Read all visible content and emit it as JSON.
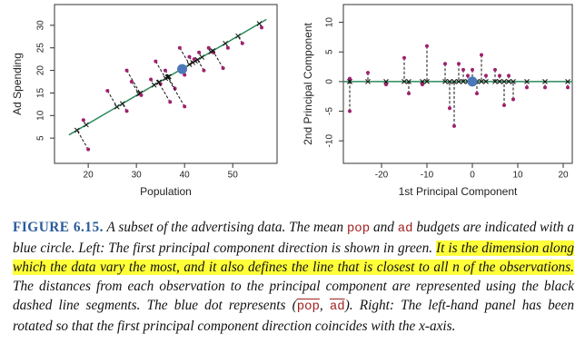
{
  "chart_data": [
    {
      "type": "scatter",
      "xlabel": "Population",
      "ylabel": "Ad Spending",
      "x": [
        19,
        20,
        24,
        28,
        28,
        29,
        31,
        33,
        34,
        35,
        36,
        37,
        38,
        39,
        40,
        40,
        41,
        42,
        43,
        44,
        45,
        46,
        48,
        49,
        52,
        56
      ],
      "values": [
        9,
        2.5,
        15.5,
        11,
        20,
        17.5,
        14.5,
        18,
        22,
        17,
        20,
        13,
        16,
        25,
        12,
        19,
        23,
        22.5,
        24,
        20,
        25,
        24,
        20.5,
        25,
        26,
        29.5
      ],
      "color": "#a0206e",
      "mean": {
        "x": 39.5,
        "y": 20.3,
        "color": "#4a78b8"
      },
      "line": {
        "x": [
          16,
          57
        ],
        "y": [
          5.7,
          31.3
        ],
        "color": "#2a8a5a"
      },
      "xlim": [
        13,
        59.2
      ],
      "ylim": [
        -0.6,
        34.6
      ],
      "xticks": [
        20,
        30,
        40,
        50
      ],
      "yticks": [
        5,
        10,
        15,
        20,
        25,
        30
      ]
    },
    {
      "type": "scatter",
      "xlabel": "1st Principal Component",
      "ylabel": "2nd Principal Component",
      "x": [
        -27,
        -27,
        -23,
        -19,
        -15,
        -14,
        -11,
        -10,
        -6,
        -5,
        -4,
        -3,
        -2,
        -1,
        0,
        1,
        2,
        3,
        5,
        6,
        7,
        8,
        9,
        12,
        16,
        21
      ],
      "values": [
        -5,
        0.5,
        1.5,
        -0.5,
        4,
        -2,
        -0.5,
        6,
        3,
        -4.5,
        -7.5,
        3,
        2,
        1,
        2,
        -2,
        4.5,
        1,
        2,
        1,
        -4,
        1,
        -3,
        -1,
        -1,
        -1
      ],
      "color": "#a0206e",
      "mean": {
        "x": 0,
        "y": 0,
        "color": "#4a78b8"
      },
      "line": {
        "x": [
          -28.4,
          22
        ],
        "y": [
          0,
          0
        ],
        "color": "#2a8a5a"
      },
      "xlim": [
        -28.4,
        22
      ],
      "ylim": [
        -13.8,
        13
      ],
      "xticks": [
        -20,
        -10,
        0,
        10,
        20
      ],
      "yticks": [
        -10,
        -5,
        0,
        5,
        10
      ]
    }
  ],
  "caption": {
    "segments": [
      "FIGURE 6.15.",
      " A subset of the advertising data. The mean ",
      "pop",
      " and ",
      "ad",
      " budgets are indicated with a blue circle. Left: The first principal component direction is shown in green. ",
      "It is the dimension along which the data vary the most, and it also defines the line that is closest to all n of the observations.",
      " The distances from each observation to the principal component are represented using the black dashed line segments. The blue dot represents (",
      "pop",
      ", ",
      "ad",
      "). Right: The left-hand panel has been rotated so that the first principal component direction coincides with the x-axis."
    ]
  }
}
